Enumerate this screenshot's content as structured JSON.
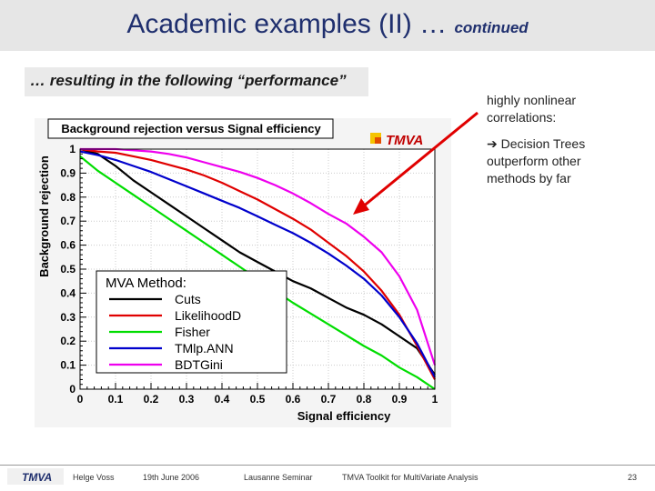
{
  "slide": {
    "title": "Academic examples (II) …",
    "title_suffix": "continued",
    "subtitle": "… resulting in the following “performance”",
    "note_lines": [
      "highly nonlinear",
      "correlations:"
    ],
    "conclusion_lines": [
      "➔ Decision Trees",
      "outperform other",
      "methods by far"
    ],
    "logo_text": "TMVA"
  },
  "footer": {
    "logo": "TMVA",
    "author": "Helge Voss",
    "date": "19th June 2006",
    "event": "Lausanne Seminar",
    "talk": "TMVA Toolkit for MultiVariate Analysis",
    "page": "23"
  },
  "chart_data": {
    "type": "line",
    "title": "Background rejection versus Signal efficiency",
    "xlabel": "Signal efficiency",
    "ylabel": "Background rejection",
    "xlim": [
      0,
      1
    ],
    "ylim": [
      0,
      1
    ],
    "xticks": [
      0,
      0.1,
      0.2,
      0.3,
      0.4,
      0.5,
      0.6,
      0.7,
      0.8,
      0.9,
      1
    ],
    "yticks": [
      0,
      0.1,
      0.2,
      0.3,
      0.4,
      0.5,
      0.6,
      0.7,
      0.8,
      0.9,
      1
    ],
    "legend_title": "MVA Method:",
    "legend_position": "bottom-left",
    "series": [
      {
        "name": "Cuts",
        "color": "#000000",
        "x": [
          0,
          0.05,
          0.1,
          0.15,
          0.2,
          0.25,
          0.3,
          0.35,
          0.4,
          0.45,
          0.5,
          0.55,
          0.6,
          0.65,
          0.7,
          0.75,
          0.8,
          0.85,
          0.9,
          0.95,
          1.0
        ],
        "y": [
          1.0,
          0.98,
          0.93,
          0.87,
          0.82,
          0.77,
          0.72,
          0.67,
          0.62,
          0.57,
          0.53,
          0.49,
          0.45,
          0.42,
          0.38,
          0.34,
          0.31,
          0.27,
          0.22,
          0.17,
          0.06
        ]
      },
      {
        "name": "LikelihoodD",
        "color": "#e00000",
        "x": [
          0,
          0.05,
          0.1,
          0.15,
          0.2,
          0.25,
          0.3,
          0.35,
          0.4,
          0.45,
          0.5,
          0.55,
          0.6,
          0.65,
          0.7,
          0.75,
          0.8,
          0.85,
          0.9,
          0.95,
          1.0
        ],
        "y": [
          1.0,
          0.99,
          0.985,
          0.97,
          0.955,
          0.935,
          0.915,
          0.89,
          0.86,
          0.825,
          0.79,
          0.75,
          0.71,
          0.665,
          0.61,
          0.555,
          0.49,
          0.41,
          0.31,
          0.18,
          0.04
        ]
      },
      {
        "name": "Fisher",
        "color": "#00dd00",
        "x": [
          0,
          0.05,
          0.1,
          0.15,
          0.2,
          0.25,
          0.3,
          0.35,
          0.4,
          0.45,
          0.5,
          0.55,
          0.6,
          0.65,
          0.7,
          0.75,
          0.8,
          0.85,
          0.9,
          0.95,
          1.0
        ],
        "y": [
          0.97,
          0.91,
          0.86,
          0.81,
          0.76,
          0.71,
          0.66,
          0.61,
          0.56,
          0.51,
          0.46,
          0.41,
          0.36,
          0.315,
          0.27,
          0.225,
          0.18,
          0.14,
          0.09,
          0.05,
          0.0
        ]
      },
      {
        "name": "TMlp.ANN",
        "color": "#0000cc",
        "x": [
          0,
          0.05,
          0.1,
          0.15,
          0.2,
          0.25,
          0.3,
          0.35,
          0.4,
          0.45,
          0.5,
          0.55,
          0.6,
          0.65,
          0.7,
          0.75,
          0.8,
          0.85,
          0.9,
          0.95,
          1.0
        ],
        "y": [
          0.99,
          0.975,
          0.955,
          0.93,
          0.905,
          0.875,
          0.845,
          0.815,
          0.785,
          0.755,
          0.72,
          0.685,
          0.65,
          0.61,
          0.565,
          0.515,
          0.46,
          0.39,
          0.3,
          0.19,
          0.05
        ]
      },
      {
        "name": "BDTGini",
        "color": "#ee00ee",
        "x": [
          0,
          0.05,
          0.1,
          0.15,
          0.2,
          0.25,
          0.3,
          0.35,
          0.4,
          0.45,
          0.5,
          0.55,
          0.6,
          0.65,
          0.7,
          0.75,
          0.8,
          0.85,
          0.9,
          0.95,
          1.0
        ],
        "y": [
          1.0,
          1.0,
          1.0,
          0.995,
          0.99,
          0.98,
          0.965,
          0.945,
          0.925,
          0.905,
          0.88,
          0.85,
          0.815,
          0.775,
          0.73,
          0.69,
          0.635,
          0.57,
          0.47,
          0.33,
          0.1
        ]
      }
    ]
  }
}
